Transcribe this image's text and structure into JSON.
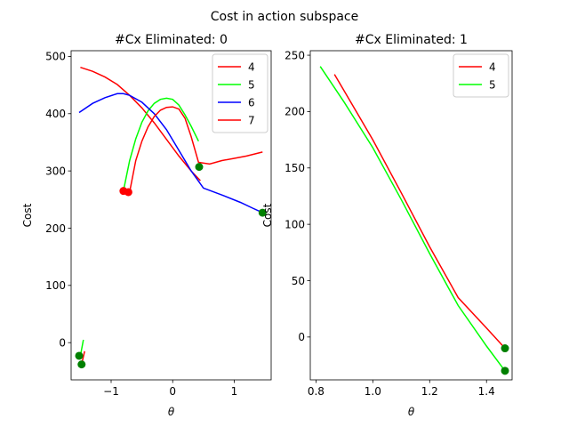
{
  "figure": {
    "suptitle": "Cost in action subspace",
    "background": "#ffffff"
  },
  "chart_data": [
    {
      "type": "line",
      "title": "#Cx Eliminated: 0",
      "xlabel": "θ",
      "ylabel": "Cost",
      "xlim": [
        -1.65,
        1.6
      ],
      "ylim": [
        -65,
        510
      ],
      "xticks": [
        -1,
        0,
        1
      ],
      "xtick_labels": [
        "−1",
        "0",
        "1"
      ],
      "yticks": [
        0,
        100,
        200,
        300,
        400,
        500
      ],
      "ytick_labels": [
        "0",
        "100",
        "200",
        "300",
        "400",
        "500"
      ],
      "grid": false,
      "legend_position": "top-right",
      "series": [
        {
          "name": "4",
          "color": "#ff0000",
          "x": [
            -1.5,
            -1.3,
            -1.1,
            -0.9,
            -0.7,
            -0.5,
            -0.3,
            -0.1,
            0.1,
            0.3,
            0.45
          ],
          "y": [
            481,
            474,
            464,
            451,
            432,
            410,
            384,
            355,
            326,
            300,
            283
          ]
        },
        {
          "name": "5",
          "color": "#00ff00",
          "x": [
            -0.8,
            -0.7,
            -0.6,
            -0.5,
            -0.4,
            -0.3,
            -0.2,
            -0.1,
            0.0,
            0.1,
            0.2,
            0.3,
            0.42
          ],
          "y": [
            265,
            318,
            356,
            385,
            405,
            418,
            425,
            427,
            425,
            415,
            398,
            378,
            352
          ]
        },
        {
          "name": "6",
          "color": "#0000ff",
          "x": [
            -1.52,
            -1.3,
            -1.1,
            -0.9,
            -0.8,
            -0.7,
            -0.5,
            -0.3,
            -0.1,
            0.1,
            0.3,
            0.5,
            0.8,
            1.1,
            1.3,
            1.46
          ],
          "y": [
            402,
            418,
            428,
            435,
            435,
            432,
            420,
            400,
            372,
            336,
            300,
            270,
            258,
            245,
            235,
            227
          ]
        },
        {
          "name": "7",
          "color": "#ff0000",
          "x": [
            -0.7,
            -0.6,
            -0.5,
            -0.4,
            -0.3,
            -0.2,
            -0.1,
            0.0,
            0.1,
            0.2,
            0.3,
            0.42,
            0.6,
            0.8,
            1.0,
            1.2,
            1.46
          ],
          "y": [
            263,
            318,
            352,
            377,
            395,
            406,
            411,
            412,
            408,
            392,
            360,
            315,
            312,
            318,
            322,
            326,
            333
          ]
        },
        {
          "x": [
            -1.5,
            -1.45
          ],
          "y": [
            -23,
            5
          ],
          "color": "#00ff00"
        },
        {
          "x": [
            -1.48,
            -1.43
          ],
          "y": [
            -38,
            -15
          ],
          "color": "#ff0000"
        }
      ],
      "markers": [
        {
          "x": -0.8,
          "y": 265,
          "color": "#ff0000"
        },
        {
          "x": -0.72,
          "y": 263,
          "color": "#ff0000"
        },
        {
          "x": 0.43,
          "y": 307,
          "color": "#008000"
        },
        {
          "x": 1.46,
          "y": 227,
          "color": "#008000"
        },
        {
          "x": -1.52,
          "y": -23,
          "color": "#008000"
        },
        {
          "x": -1.48,
          "y": -38,
          "color": "#008000"
        }
      ]
    },
    {
      "type": "line",
      "title": "#Cx Eliminated: 1",
      "xlabel": "θ",
      "ylabel": "Cost",
      "xlim": [
        0.78,
        1.49
      ],
      "ylim": [
        -38,
        254
      ],
      "xticks": [
        0.8,
        1.0,
        1.2,
        1.4
      ],
      "xtick_labels": [
        "0.8",
        "1.0",
        "1.2",
        "1.4"
      ],
      "yticks": [
        0,
        50,
        100,
        150,
        200,
        250
      ],
      "ytick_labels": [
        "0",
        "50",
        "100",
        "150",
        "200",
        "250"
      ],
      "grid": false,
      "legend_position": "top-right",
      "series": [
        {
          "name": "4",
          "color": "#ff0000",
          "x": [
            0.865,
            0.9,
            1.0,
            1.1,
            1.2,
            1.3,
            1.4,
            1.465
          ],
          "y": [
            233,
            218,
            175,
            128,
            80,
            35,
            8,
            -10
          ]
        },
        {
          "name": "5",
          "color": "#00ff00",
          "x": [
            0.815,
            0.9,
            1.0,
            1.1,
            1.2,
            1.3,
            1.4,
            1.465
          ],
          "y": [
            240,
            208,
            168,
            122,
            74,
            28,
            -8,
            -30
          ]
        }
      ],
      "markers": [
        {
          "x": 1.465,
          "y": -10,
          "color": "#008000"
        },
        {
          "x": 1.465,
          "y": -30,
          "color": "#008000"
        }
      ]
    }
  ]
}
